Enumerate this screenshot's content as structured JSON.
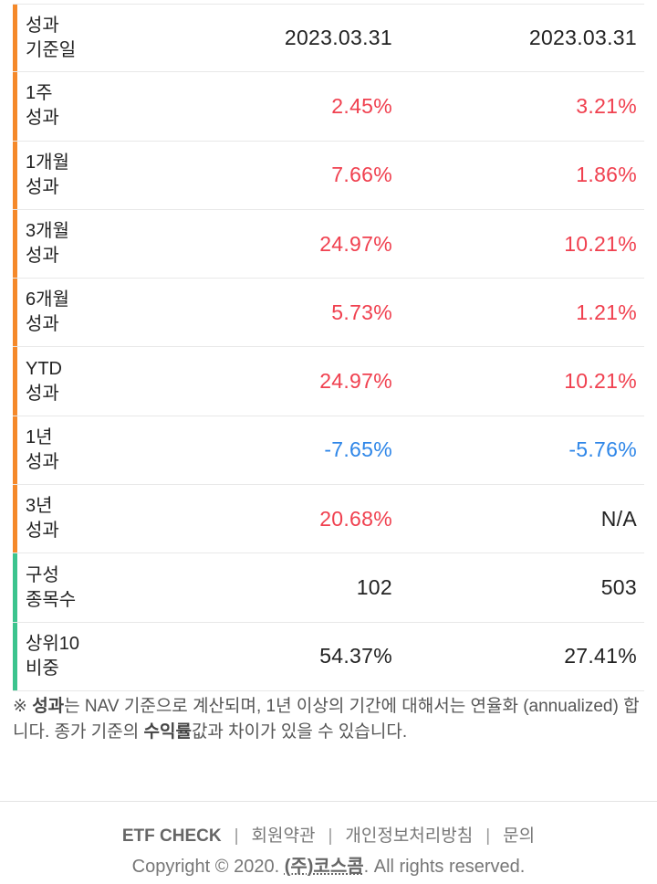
{
  "rows": [
    {
      "label1": "성과",
      "label2": "기준일",
      "v1": "2023.03.31",
      "v2": "2023.03.31",
      "s1": "neu",
      "s2": "neu",
      "bar": "#f5892a"
    },
    {
      "label1": "1주",
      "label2": "성과",
      "v1": "2.45%",
      "v2": "3.21%",
      "s1": "pos",
      "s2": "pos",
      "bar": "#f5892a"
    },
    {
      "label1": "1개월",
      "label2": "성과",
      "v1": "7.66%",
      "v2": "1.86%",
      "s1": "pos",
      "s2": "pos",
      "bar": "#f5892a"
    },
    {
      "label1": "3개월",
      "label2": "성과",
      "v1": "24.97%",
      "v2": "10.21%",
      "s1": "pos",
      "s2": "pos",
      "bar": "#f5892a"
    },
    {
      "label1": "6개월",
      "label2": "성과",
      "v1": "5.73%",
      "v2": "1.21%",
      "s1": "pos",
      "s2": "pos",
      "bar": "#f5892a"
    },
    {
      "label1": "YTD",
      "label2": "성과",
      "v1": "24.97%",
      "v2": "10.21%",
      "s1": "pos",
      "s2": "pos",
      "bar": "#f5892a"
    },
    {
      "label1": "1년",
      "label2": "성과",
      "v1": "-7.65%",
      "v2": "-5.76%",
      "s1": "neg",
      "s2": "neg",
      "bar": "#f5892a"
    },
    {
      "label1": "3년",
      "label2": "성과",
      "v1": "20.68%",
      "v2": "N/A",
      "s1": "pos",
      "s2": "neu",
      "bar": "#f5892a"
    },
    {
      "label1": "구성",
      "label2": "종목수",
      "v1": "102",
      "v2": "503",
      "s1": "neu",
      "s2": "neu",
      "bar": "#3cc48e"
    },
    {
      "label1": "상위10",
      "label2": "비중",
      "v1": "54.37%",
      "v2": "27.41%",
      "s1": "neu",
      "s2": "neu",
      "bar": "#3cc48e"
    }
  ],
  "note": {
    "mark": "※ ",
    "bold1": "성과",
    "text1": "는 NAV 기준으로 계산되며, 1년 이상의 기간에 대해서는 연율화 (annualized) 합니다. 종가 기준의 ",
    "bold2": "수익률",
    "text2": "값과 차이가 있을 수 있습니다."
  },
  "footer": {
    "brand": "ETF CHECK",
    "sep": "|",
    "terms": "회원약관",
    "privacy": "개인정보처리방침",
    "contact": "문의",
    "copyright_prefix": "Copyright © 2020. ",
    "company": "(주)코스콤",
    "copyright_suffix": ". All rights reserved."
  },
  "colors": {
    "positive": "#f0404f",
    "negative": "#2e86e8",
    "performance_bar": "#f5892a",
    "composition_bar": "#3cc48e"
  }
}
